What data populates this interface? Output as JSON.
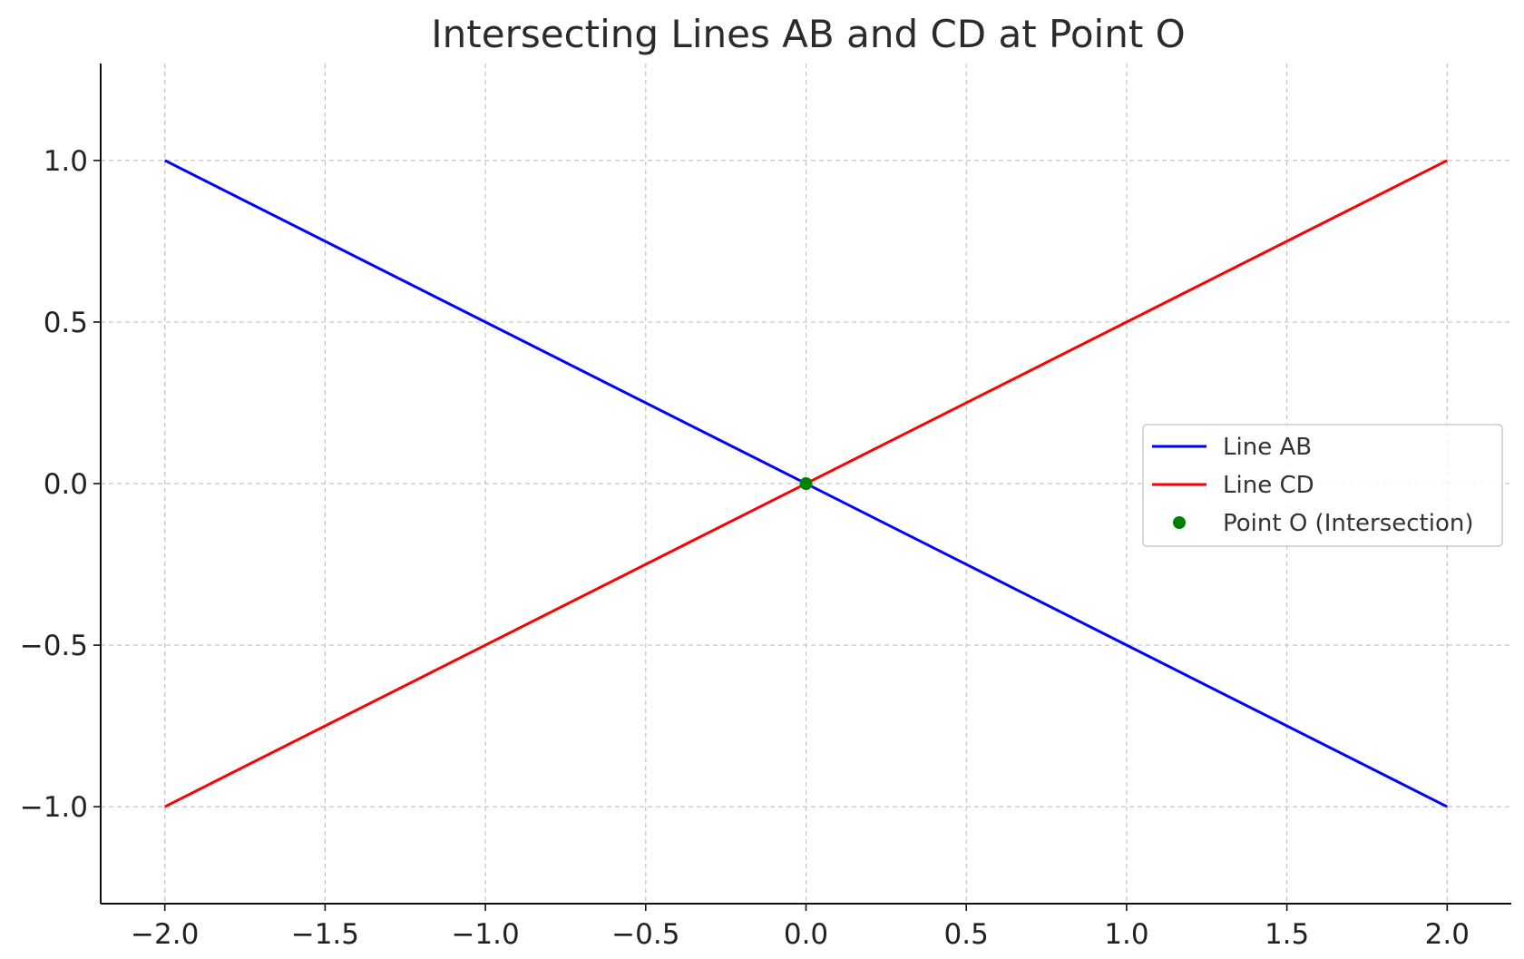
{
  "chart_data": {
    "type": "line",
    "title": "Intersecting Lines AB and CD at Point O",
    "xlabel": "",
    "ylabel": "",
    "xlim": [
      -2.2,
      2.2
    ],
    "ylim": [
      -1.3,
      1.3
    ],
    "xticks": [
      -2.0,
      -1.5,
      -1.0,
      -0.5,
      0.0,
      0.5,
      1.0,
      1.5,
      2.0
    ],
    "yticks": [
      -1.0,
      -0.5,
      0.0,
      0.5,
      1.0
    ],
    "xtick_labels": [
      "−2.0",
      "−1.5",
      "−1.0",
      "−0.5",
      "0.0",
      "0.5",
      "1.0",
      "1.5",
      "2.0"
    ],
    "ytick_labels": [
      "−1.0",
      "−0.5",
      "0.0",
      "0.5",
      "1.0"
    ],
    "grid": true,
    "legend_position": "center-right",
    "series": [
      {
        "name": "Line AB",
        "kind": "line",
        "color": "#0000ff",
        "x": [
          -2.0,
          2.0
        ],
        "y": [
          1.0,
          -1.0
        ]
      },
      {
        "name": "Line CD",
        "kind": "line",
        "color": "#ff0000",
        "x": [
          -2.0,
          2.0
        ],
        "y": [
          -1.0,
          1.0
        ]
      },
      {
        "name": "Point O (Intersection)",
        "kind": "point",
        "color": "#008000",
        "x": [
          0.0
        ],
        "y": [
          0.0
        ]
      }
    ]
  }
}
